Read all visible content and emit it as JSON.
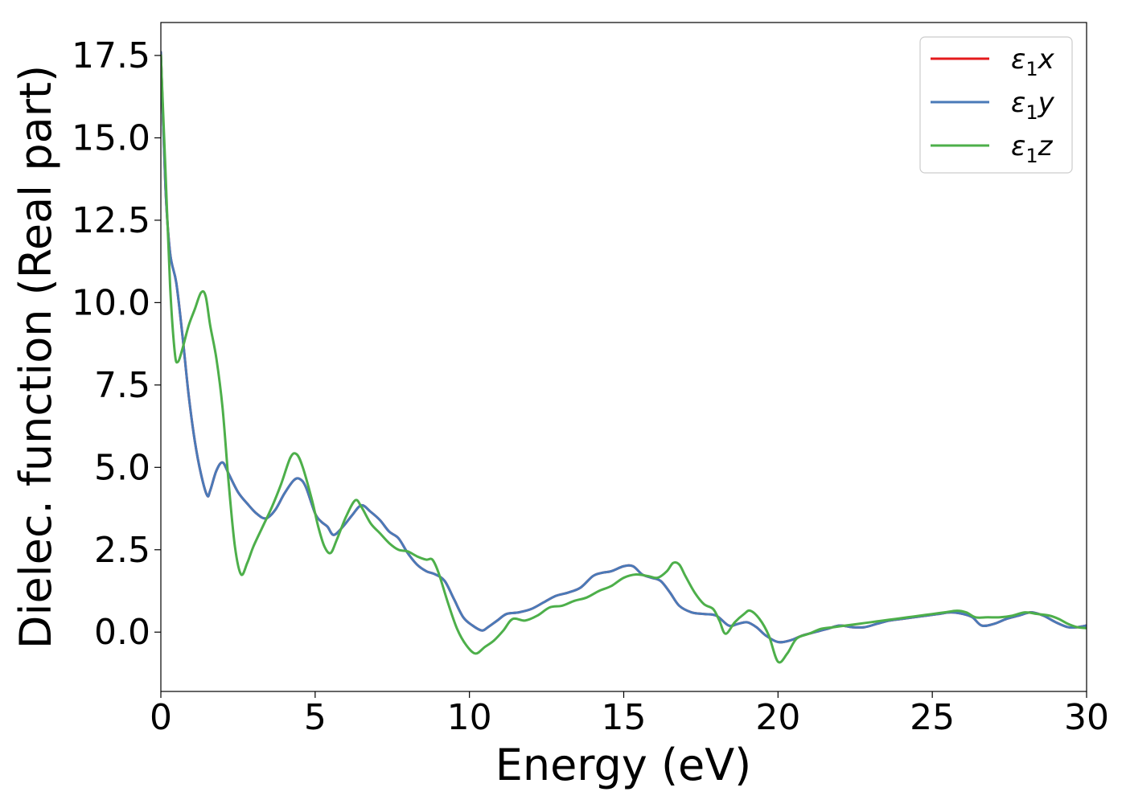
{
  "chart_data": {
    "type": "line",
    "title": "",
    "xlabel": "Energy (eV)",
    "ylabel": "Dielec. function (Real part)",
    "xlim": [
      0,
      30
    ],
    "ylim": [
      -1.8,
      18.5
    ],
    "xticks": [
      0,
      5,
      10,
      15,
      20,
      25,
      30
    ],
    "xtick_labels": [
      "0",
      "5",
      "10",
      "15",
      "20",
      "25",
      "30"
    ],
    "yticks": [
      0.0,
      2.5,
      5.0,
      7.5,
      10.0,
      12.5,
      15.0,
      17.5
    ],
    "ytick_labels": [
      "0.0",
      "2.5",
      "5.0",
      "7.5",
      "10.0",
      "12.5",
      "15.0",
      "17.5"
    ],
    "grid": false,
    "legend_position": "top-right",
    "series": [
      {
        "name": "ε1x",
        "legend_base": "ε",
        "legend_sub": "1",
        "legend_var": "x",
        "color": "#e41a1c",
        "x": [
          0,
          0.15,
          0.3,
          0.5,
          0.7,
          0.9,
          1.1,
          1.3,
          1.5,
          1.6,
          1.8,
          2.0,
          2.2,
          2.5,
          2.8,
          3.1,
          3.4,
          3.7,
          4.0,
          4.3,
          4.5,
          4.7,
          5.0,
          5.2,
          5.4,
          5.6,
          5.9,
          6.2,
          6.5,
          6.8,
          7.1,
          7.4,
          7.7,
          8.0,
          8.3,
          8.6,
          8.9,
          9.2,
          9.5,
          9.8,
          10.1,
          10.4,
          10.6,
          10.9,
          11.2,
          11.6,
          12.0,
          12.4,
          12.8,
          13.2,
          13.6,
          14.0,
          14.3,
          14.6,
          15.0,
          15.3,
          15.6,
          15.9,
          16.2,
          16.5,
          16.8,
          17.2,
          17.6,
          18.0,
          18.4,
          18.7,
          19.0,
          19.3,
          19.6,
          20.0,
          20.4,
          20.8,
          21.2,
          21.6,
          22.0,
          22.4,
          22.8,
          23.2,
          23.6,
          24.0,
          24.4,
          24.8,
          25.2,
          25.6,
          26.0,
          26.3,
          26.6,
          27.0,
          27.4,
          27.8,
          28.2,
          28.6,
          29.0,
          29.4,
          29.7,
          30.0
        ],
        "y": [
          17.6,
          13.5,
          11.5,
          10.6,
          9.0,
          7.2,
          5.8,
          4.8,
          4.15,
          4.3,
          4.9,
          5.15,
          4.8,
          4.25,
          3.9,
          3.6,
          3.45,
          3.7,
          4.2,
          4.6,
          4.65,
          4.4,
          3.6,
          3.35,
          3.2,
          2.95,
          3.2,
          3.55,
          3.85,
          3.65,
          3.4,
          3.05,
          2.85,
          2.4,
          2.05,
          1.85,
          1.75,
          1.55,
          1.0,
          0.45,
          0.2,
          0.05,
          0.15,
          0.35,
          0.55,
          0.6,
          0.7,
          0.9,
          1.1,
          1.2,
          1.35,
          1.7,
          1.8,
          1.85,
          2.0,
          2.0,
          1.75,
          1.65,
          1.55,
          1.2,
          0.8,
          0.6,
          0.55,
          0.5,
          0.2,
          0.25,
          0.3,
          0.15,
          -0.1,
          -0.3,
          -0.25,
          -0.1,
          0.0,
          0.1,
          0.2,
          0.15,
          0.15,
          0.25,
          0.35,
          0.4,
          0.45,
          0.5,
          0.55,
          0.6,
          0.55,
          0.45,
          0.2,
          0.25,
          0.4,
          0.5,
          0.6,
          0.5,
          0.3,
          0.15,
          0.15,
          0.2
        ]
      },
      {
        "name": "ε1y",
        "legend_base": "ε",
        "legend_sub": "1",
        "legend_var": "y",
        "color": "#4a7ab8",
        "x": [
          0,
          0.15,
          0.3,
          0.5,
          0.7,
          0.9,
          1.1,
          1.3,
          1.5,
          1.6,
          1.8,
          2.0,
          2.2,
          2.5,
          2.8,
          3.1,
          3.4,
          3.7,
          4.0,
          4.3,
          4.5,
          4.7,
          5.0,
          5.2,
          5.4,
          5.6,
          5.9,
          6.2,
          6.5,
          6.8,
          7.1,
          7.4,
          7.7,
          8.0,
          8.3,
          8.6,
          8.9,
          9.2,
          9.5,
          9.8,
          10.1,
          10.4,
          10.6,
          10.9,
          11.2,
          11.6,
          12.0,
          12.4,
          12.8,
          13.2,
          13.6,
          14.0,
          14.3,
          14.6,
          15.0,
          15.3,
          15.6,
          15.9,
          16.2,
          16.5,
          16.8,
          17.2,
          17.6,
          18.0,
          18.4,
          18.7,
          19.0,
          19.3,
          19.6,
          20.0,
          20.4,
          20.8,
          21.2,
          21.6,
          22.0,
          22.4,
          22.8,
          23.2,
          23.6,
          24.0,
          24.4,
          24.8,
          25.2,
          25.6,
          26.0,
          26.3,
          26.6,
          27.0,
          27.4,
          27.8,
          28.2,
          28.6,
          29.0,
          29.4,
          29.7,
          30.0
        ],
        "y": [
          17.6,
          13.5,
          11.5,
          10.6,
          9.0,
          7.2,
          5.8,
          4.8,
          4.15,
          4.3,
          4.9,
          5.15,
          4.8,
          4.25,
          3.9,
          3.6,
          3.45,
          3.7,
          4.2,
          4.6,
          4.65,
          4.4,
          3.6,
          3.35,
          3.2,
          2.95,
          3.2,
          3.55,
          3.85,
          3.65,
          3.4,
          3.05,
          2.85,
          2.4,
          2.05,
          1.85,
          1.75,
          1.55,
          1.0,
          0.45,
          0.2,
          0.05,
          0.15,
          0.35,
          0.55,
          0.6,
          0.7,
          0.9,
          1.1,
          1.2,
          1.35,
          1.7,
          1.8,
          1.85,
          2.0,
          2.0,
          1.75,
          1.65,
          1.55,
          1.2,
          0.8,
          0.6,
          0.55,
          0.5,
          0.2,
          0.25,
          0.3,
          0.15,
          -0.1,
          -0.3,
          -0.25,
          -0.1,
          0.0,
          0.1,
          0.2,
          0.15,
          0.15,
          0.25,
          0.35,
          0.4,
          0.45,
          0.5,
          0.55,
          0.6,
          0.55,
          0.45,
          0.2,
          0.25,
          0.4,
          0.5,
          0.6,
          0.5,
          0.3,
          0.15,
          0.15,
          0.2
        ]
      },
      {
        "name": "ε1z",
        "legend_base": "ε",
        "legend_sub": "1",
        "legend_var": "z",
        "color": "#4daf4a",
        "x": [
          0,
          0.15,
          0.3,
          0.45,
          0.55,
          0.7,
          0.9,
          1.1,
          1.3,
          1.45,
          1.6,
          1.8,
          2.0,
          2.2,
          2.4,
          2.6,
          2.8,
          3.0,
          3.3,
          3.6,
          3.9,
          4.2,
          4.4,
          4.6,
          4.9,
          5.1,
          5.3,
          5.5,
          5.7,
          6.0,
          6.3,
          6.5,
          6.8,
          7.1,
          7.4,
          7.7,
          8.0,
          8.3,
          8.6,
          8.8,
          9.0,
          9.3,
          9.6,
          9.9,
          10.2,
          10.5,
          10.8,
          11.1,
          11.4,
          11.8,
          12.2,
          12.6,
          13.0,
          13.4,
          13.8,
          14.2,
          14.6,
          15.0,
          15.4,
          15.8,
          16.1,
          16.4,
          16.6,
          16.8,
          17.0,
          17.3,
          17.6,
          17.9,
          18.1,
          18.3,
          18.6,
          18.9,
          19.1,
          19.4,
          19.7,
          20.0,
          20.3,
          20.6,
          21.0,
          21.4,
          21.8,
          22.2,
          22.6,
          23.0,
          23.4,
          23.8,
          24.2,
          24.6,
          25.0,
          25.4,
          25.8,
          26.1,
          26.4,
          26.8,
          27.2,
          27.6,
          28.0,
          28.4,
          28.8,
          29.1,
          29.4,
          29.7,
          30.0
        ],
        "y": [
          17.5,
          14.0,
          10.5,
          8.5,
          8.2,
          8.6,
          9.3,
          9.8,
          10.3,
          10.2,
          9.3,
          8.3,
          6.8,
          4.5,
          2.6,
          1.75,
          2.1,
          2.6,
          3.2,
          3.8,
          4.5,
          5.3,
          5.4,
          5.0,
          4.0,
          3.2,
          2.6,
          2.4,
          2.8,
          3.5,
          4.0,
          3.8,
          3.3,
          3.0,
          2.7,
          2.5,
          2.45,
          2.3,
          2.2,
          2.2,
          1.8,
          0.9,
          0.1,
          -0.4,
          -0.65,
          -0.45,
          -0.25,
          0.05,
          0.4,
          0.35,
          0.5,
          0.75,
          0.8,
          0.95,
          1.05,
          1.25,
          1.4,
          1.65,
          1.75,
          1.7,
          1.65,
          1.85,
          2.1,
          2.05,
          1.7,
          1.2,
          0.85,
          0.7,
          0.35,
          -0.05,
          0.3,
          0.55,
          0.65,
          0.4,
          -0.1,
          -0.9,
          -0.65,
          -0.2,
          -0.05,
          0.1,
          0.15,
          0.2,
          0.25,
          0.3,
          0.35,
          0.4,
          0.45,
          0.5,
          0.55,
          0.6,
          0.65,
          0.6,
          0.45,
          0.45,
          0.45,
          0.5,
          0.6,
          0.55,
          0.5,
          0.4,
          0.25,
          0.15,
          0.12
        ]
      }
    ]
  }
}
